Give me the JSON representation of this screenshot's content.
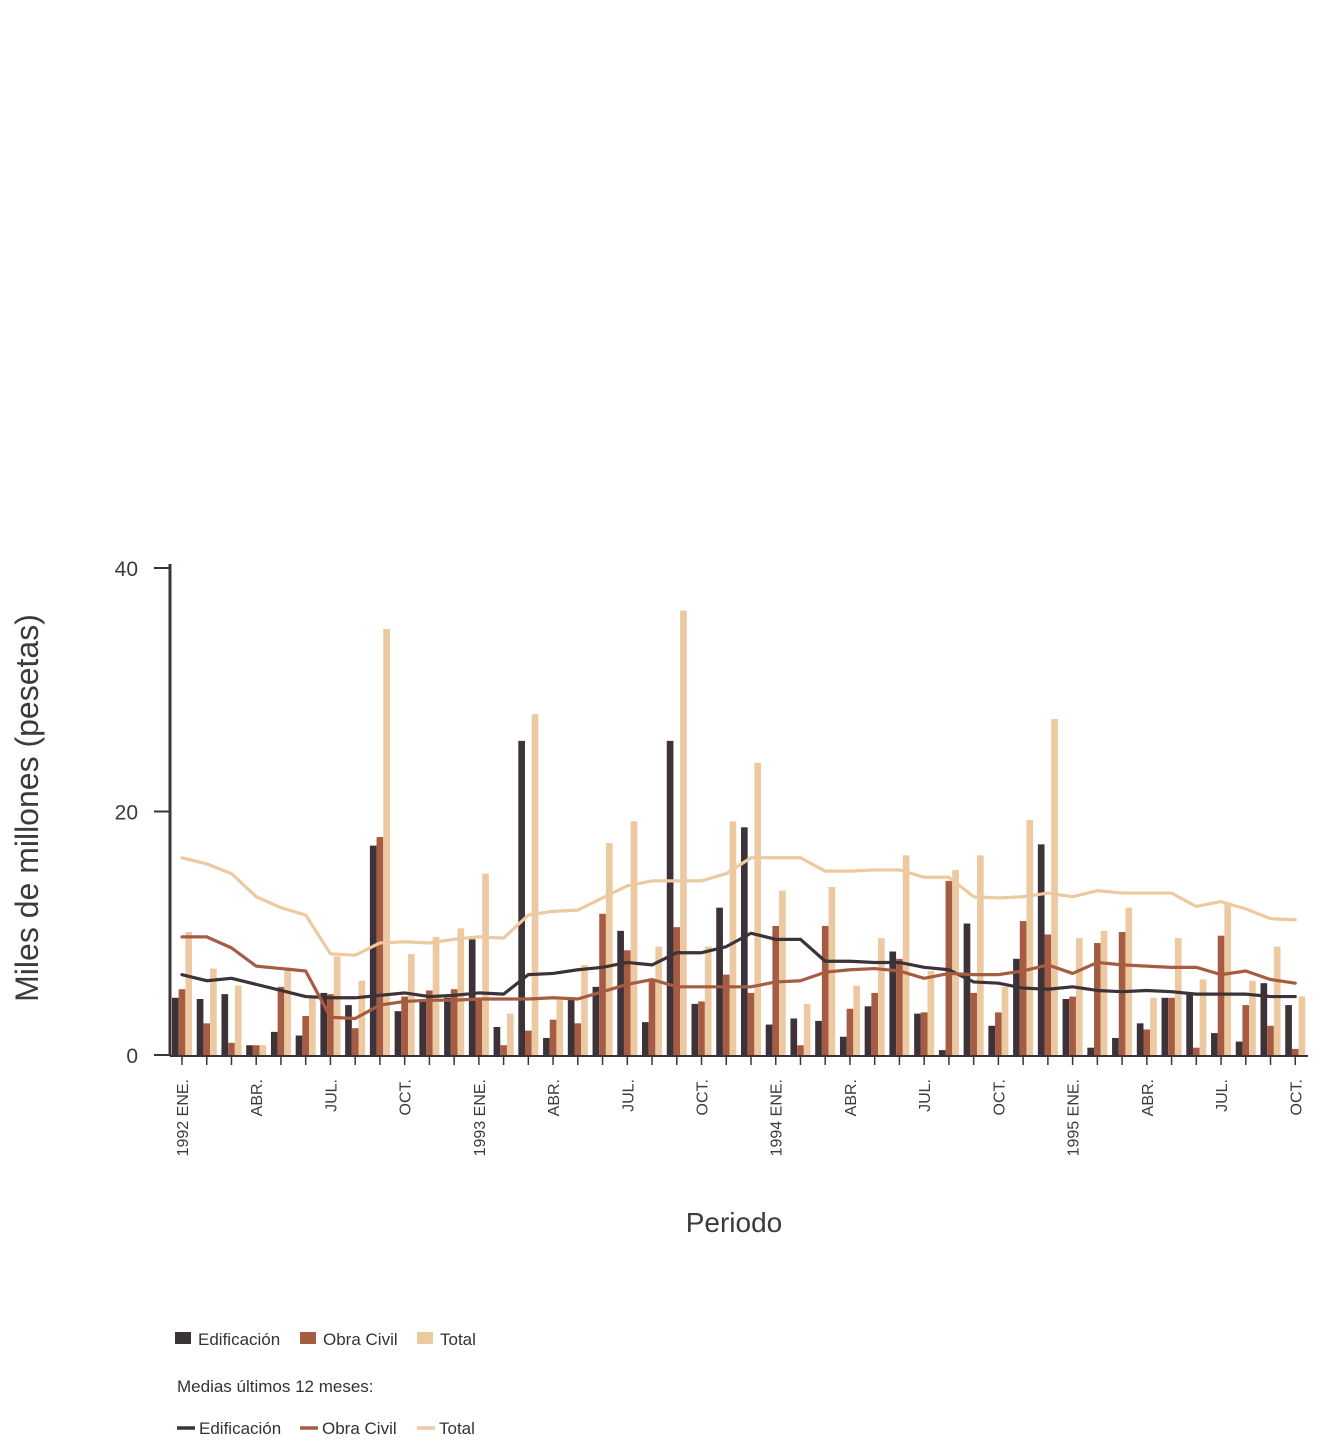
{
  "chart_data": {
    "type": "bar",
    "xlabel": "Periodo",
    "ylabel": "Miles de millones (pesetas)",
    "ylim": [
      0,
      40
    ],
    "yticks": [
      0,
      20,
      40
    ],
    "x_tick_labels": [
      {
        "index": 0,
        "label": "1992 ENE."
      },
      {
        "index": 3,
        "label": "ABR."
      },
      {
        "index": 6,
        "label": "JUL."
      },
      {
        "index": 9,
        "label": "OCT."
      },
      {
        "index": 12,
        "label": "1993 ENE."
      },
      {
        "index": 15,
        "label": "ABR."
      },
      {
        "index": 18,
        "label": "JUL."
      },
      {
        "index": 21,
        "label": "OCT."
      },
      {
        "index": 24,
        "label": "1994 ENE."
      },
      {
        "index": 27,
        "label": "ABR."
      },
      {
        "index": 30,
        "label": "JUL."
      },
      {
        "index": 33,
        "label": "OCT."
      },
      {
        "index": 36,
        "label": "1995 ENE."
      },
      {
        "index": 39,
        "label": "ABR."
      },
      {
        "index": 42,
        "label": "JUL."
      },
      {
        "index": 45,
        "label": "OCT."
      }
    ],
    "series": [
      {
        "name": "Edificación",
        "kind": "bar",
        "color": "#3d3238",
        "values": [
          4.7,
          4.6,
          5.0,
          0.8,
          1.9,
          1.6,
          5.1,
          4.1,
          17.2,
          3.6,
          4.5,
          4.7,
          9.5,
          2.3,
          25.8,
          1.4,
          4.7,
          5.6,
          10.2,
          2.7,
          25.8,
          4.2,
          12.1,
          18.7,
          2.5,
          3.0,
          2.8,
          1.5,
          4.0,
          8.5,
          3.4,
          0.4,
          10.8,
          2.4,
          7.9,
          17.3,
          4.6,
          0.6,
          1.4,
          2.6,
          4.7,
          5.0,
          1.8,
          1.1,
          5.9,
          4.1
        ]
      },
      {
        "name": "Obra Civil",
        "kind": "bar",
        "color": "#a65c42",
        "values": [
          5.4,
          2.6,
          1.0,
          0.8,
          5.6,
          3.2,
          5.0,
          2.2,
          17.9,
          4.8,
          5.3,
          5.4,
          4.6,
          0.8,
          2.0,
          2.9,
          2.6,
          11.6,
          8.6,
          6.1,
          10.5,
          4.4,
          6.6,
          5.1,
          10.6,
          0.8,
          10.6,
          3.8,
          5.1,
          7.9,
          3.5,
          14.3,
          5.1,
          3.5,
          11.0,
          9.9,
          4.8,
          9.2,
          10.1,
          2.1,
          4.7,
          0.6,
          9.8,
          4.1,
          2.4,
          0.5
        ]
      },
      {
        "name": "Total",
        "kind": "bar",
        "color": "#edc9a1",
        "values": [
          10.1,
          7.1,
          5.7,
          0.8,
          7.2,
          4.8,
          8.1,
          6.1,
          35.0,
          8.3,
          9.7,
          10.4,
          14.9,
          3.4,
          28.0,
          4.5,
          7.4,
          17.4,
          19.2,
          8.9,
          36.5,
          8.9,
          19.2,
          24.0,
          13.5,
          4.2,
          13.8,
          5.7,
          9.6,
          16.4,
          6.9,
          15.2,
          16.4,
          5.6,
          19.3,
          27.6,
          9.6,
          10.2,
          12.1,
          4.7,
          9.6,
          6.2,
          12.5,
          6.1,
          8.9,
          4.8
        ]
      },
      {
        "name": "Edificación",
        "kind": "line",
        "group": "Medias últimos 12 meses:",
        "color": "#3d3238",
        "values": [
          6.6,
          6.1,
          6.3,
          5.8,
          5.3,
          4.8,
          4.7,
          4.7,
          4.9,
          5.1,
          4.8,
          4.9,
          5.1,
          5.0,
          6.6,
          6.7,
          7.0,
          7.2,
          7.6,
          7.4,
          8.4,
          8.4,
          8.9,
          10.0,
          9.5,
          9.5,
          7.7,
          7.7,
          7.6,
          7.6,
          7.2,
          7.0,
          6.0,
          5.9,
          5.5,
          5.4,
          5.6,
          5.3,
          5.2,
          5.3,
          5.2,
          5.0,
          5.0,
          5.0,
          4.8,
          4.8
        ]
      },
      {
        "name": "Obra Civil",
        "kind": "line",
        "group": "Medias últimos 12 meses:",
        "color": "#a65c42",
        "values": [
          9.7,
          9.7,
          8.8,
          7.3,
          7.1,
          6.9,
          3.1,
          3.0,
          4.1,
          4.4,
          4.5,
          4.5,
          4.6,
          4.6,
          4.6,
          4.7,
          4.6,
          5.2,
          5.8,
          6.2,
          5.6,
          5.6,
          5.6,
          5.6,
          6.0,
          6.1,
          6.8,
          7.0,
          7.1,
          6.9,
          6.3,
          6.7,
          6.6,
          6.6,
          6.9,
          7.4,
          6.7,
          7.6,
          7.4,
          7.3,
          7.2,
          7.2,
          6.6,
          6.9,
          6.2,
          5.9
        ]
      },
      {
        "name": "Total",
        "kind": "line",
        "group": "Medias últimos 12 meses:",
        "color": "#edc9a1",
        "values": [
          16.2,
          15.7,
          14.9,
          13.0,
          12.1,
          11.5,
          8.3,
          8.2,
          9.2,
          9.3,
          9.2,
          9.5,
          9.7,
          9.6,
          11.5,
          11.8,
          11.9,
          12.9,
          13.9,
          14.3,
          14.3,
          14.3,
          14.9,
          16.2,
          16.2,
          16.2,
          15.1,
          15.1,
          15.2,
          15.2,
          14.6,
          14.6,
          13.0,
          12.9,
          13.0,
          13.3,
          13.0,
          13.5,
          13.3,
          13.3,
          13.3,
          12.2,
          12.6,
          12.0,
          11.2,
          11.1
        ]
      }
    ],
    "legend": {
      "placement": "bottom-left",
      "bars": [
        "Edificación",
        "Obra Civil",
        "Total"
      ],
      "lines_heading": "Medias últimos 12 meses:",
      "lines": [
        "Edificación",
        "Obra Civil",
        "Total"
      ]
    }
  }
}
